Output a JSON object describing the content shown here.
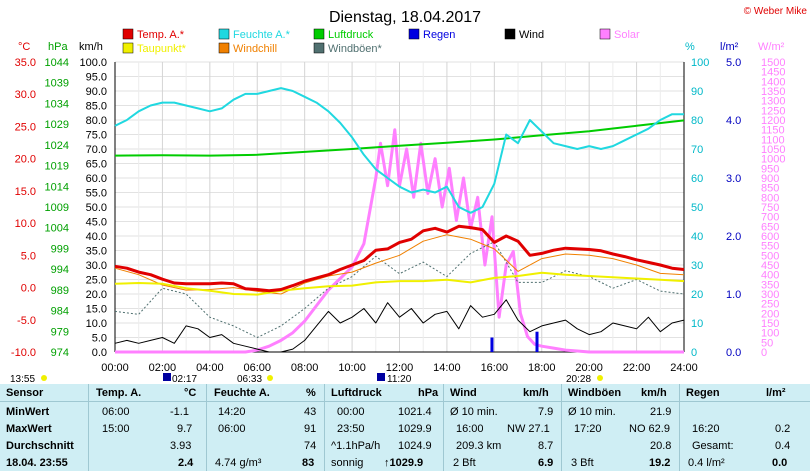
{
  "title": "Dienstag, 18.04.2017",
  "copyright": "© Weber Mike",
  "legend": [
    {
      "label": "Temp. A.*",
      "color": "#e00000"
    },
    {
      "label": "Feuchte A.*",
      "color": "#20d8e0"
    },
    {
      "label": "Luftdruck",
      "color": "#00cc00"
    },
    {
      "label": "Regen",
      "color": "#0000e0"
    },
    {
      "label": "Wind",
      "color": "#000000"
    },
    {
      "label": "Solar",
      "color": "#ff80ff"
    },
    {
      "label": "Taupunkt*",
      "color": "#f0f000"
    },
    {
      "label": "Windchill",
      "color": "#f08000"
    },
    {
      "label": "Windböen*",
      "color": "#507070"
    }
  ],
  "axis_units": {
    "temp": "°C",
    "press": "hPa",
    "wind": "km/h",
    "hum": "%",
    "rain": "l/m²",
    "solar": "W/m²"
  },
  "axis_colors": {
    "temp": "#e00000",
    "press": "#00a000",
    "wind": "#000000",
    "hum": "#00b8c8",
    "rain": "#0000c0",
    "solar": "#ff80ff"
  },
  "marker_times": {
    "min_temp": "13:55",
    "sunrise": "02:17",
    "dawn": "06:33",
    "sunset": "11:20",
    "dusk": "20:28"
  },
  "chart_data": {
    "type": "line",
    "x_ticks": [
      "00:00",
      "02:00",
      "04:00",
      "06:00",
      "08:00",
      "10:00",
      "12:00",
      "14:00",
      "16:00",
      "18:00",
      "20:00",
      "22:00",
      "24:00"
    ],
    "axes": {
      "temp": {
        "min": -10,
        "max": 35,
        "step": 5,
        "ticks": [
          "35.0",
          "30.0",
          "25.0",
          "20.0",
          "15.0",
          "10.0",
          "5.0",
          "0.0",
          "-5.0",
          "-10.0"
        ]
      },
      "press": {
        "min": 974,
        "max": 1044,
        "ticks": [
          "1044",
          "1039",
          "1034",
          "1029",
          "1024",
          "1019",
          "1014",
          "1009",
          "1004",
          "999",
          "994",
          "989",
          "984",
          "979",
          "974"
        ]
      },
      "wind": {
        "min": 0,
        "max": 100,
        "step": 5
      },
      "hum": {
        "min": 0,
        "max": 100,
        "step": 10,
        "ticks": [
          "100",
          "90",
          "80",
          "70",
          "60",
          "50",
          "40",
          "30",
          "20",
          "10",
          "0"
        ]
      },
      "rain": {
        "min": 0,
        "max": 5,
        "ticks": [
          "5.0",
          "4.0",
          "3.0",
          "2.0",
          "1.0",
          "0.0"
        ]
      },
      "solar": {
        "min": 0,
        "max": 1500,
        "step": 50
      }
    },
    "series": [
      {
        "name": "Temp. A.*",
        "axis": "temp",
        "color": "#e00000",
        "width": 3,
        "x": [
          0,
          0.5,
          1,
          1.5,
          2,
          2.5,
          3,
          3.5,
          4,
          4.5,
          5,
          5.5,
          6,
          6.5,
          7,
          7.5,
          8,
          8.5,
          9,
          9.5,
          10,
          10.5,
          11,
          11.5,
          12,
          12.5,
          13,
          13.5,
          14,
          14.5,
          15,
          15.5,
          16,
          16.5,
          17,
          17.5,
          18,
          18.5,
          19,
          19.5,
          20,
          20.5,
          21,
          21.5,
          22,
          22.5,
          23,
          23.5,
          24
        ],
        "y": [
          3.3,
          3.0,
          2.4,
          2.0,
          1.3,
          0.7,
          0.6,
          0.6,
          0.6,
          0.7,
          0.6,
          -0.2,
          -0.3,
          -0.5,
          -0.3,
          0.3,
          1.0,
          1.5,
          2.0,
          2.8,
          3.5,
          4.2,
          5.8,
          6.0,
          7.0,
          7.5,
          8.8,
          9.2,
          8.6,
          9.5,
          9.3,
          9.0,
          7.0,
          8.0,
          7.2,
          5.0,
          5.3,
          5.8,
          6.1,
          6.0,
          5.9,
          5.7,
          5.2,
          4.8,
          4.3,
          3.9,
          3.5,
          3.0,
          2.8
        ]
      },
      {
        "name": "Taupunkt*",
        "axis": "temp",
        "color": "#f0f000",
        "width": 2,
        "x": [
          0,
          1,
          2,
          3,
          4,
          5,
          6,
          7,
          8,
          9,
          10,
          11,
          12,
          13,
          14,
          15,
          16,
          17,
          18,
          19,
          20,
          21,
          22,
          23,
          24
        ],
        "y": [
          0.6,
          0.7,
          0.6,
          -0.1,
          -0.5,
          -1.0,
          -1.1,
          -0.5,
          -0.1,
          0.2,
          0.3,
          0.8,
          1.0,
          1.0,
          1.2,
          0.8,
          1.5,
          1.8,
          2.3,
          2.0,
          1.8,
          1.6,
          1.4,
          1.2,
          1.0
        ]
      },
      {
        "name": "Feuchte A.*",
        "axis": "hum",
        "color": "#20d8e0",
        "width": 2,
        "x": [
          0,
          0.5,
          1,
          1.5,
          2,
          2.5,
          3,
          3.5,
          4,
          4.5,
          5,
          5.5,
          6,
          6.5,
          7,
          7.5,
          8,
          8.5,
          9,
          9.5,
          10,
          10.5,
          11,
          11.5,
          12,
          12.5,
          13,
          13.5,
          14,
          14.5,
          15,
          15.5,
          16,
          16.5,
          17,
          17.5,
          18,
          18.5,
          19,
          19.5,
          20,
          20.5,
          21,
          21.5,
          22,
          22.5,
          23,
          23.5,
          24
        ],
        "y": [
          78,
          80,
          83,
          85,
          86,
          86,
          85,
          84,
          83,
          84,
          87,
          89,
          89,
          90,
          91,
          90,
          88,
          86,
          83,
          79,
          74,
          68,
          63,
          60,
          57,
          55,
          56,
          55,
          57,
          50,
          48,
          50,
          58,
          75,
          72,
          80,
          76,
          72,
          71,
          70,
          71,
          70,
          71,
          73,
          75,
          77,
          80,
          82,
          82
        ]
      },
      {
        "name": "Luftdruck",
        "axis": "press",
        "color": "#00cc00",
        "width": 2,
        "x": [
          0,
          2,
          4,
          6,
          8,
          10,
          12,
          14,
          16,
          18,
          20,
          22,
          24
        ],
        "y": [
          1021.4,
          1021.5,
          1021.4,
          1021.6,
          1022.3,
          1023.0,
          1023.8,
          1024.5,
          1025.3,
          1026.3,
          1027.3,
          1028.6,
          1029.9
        ]
      },
      {
        "name": "Wind",
        "axis": "wind",
        "color": "#000000",
        "width": 1,
        "x": [
          0,
          0.5,
          1,
          1.5,
          2,
          2.5,
          3,
          3.5,
          4,
          4.5,
          5,
          5.5,
          6,
          6.5,
          7,
          7.5,
          8,
          8.5,
          9,
          9.5,
          10,
          10.5,
          11,
          11.5,
          12,
          12.5,
          13,
          13.5,
          14,
          14.5,
          15,
          15.5,
          16,
          16.5,
          17,
          17.5,
          18,
          18.5,
          19,
          19.5,
          20,
          20.5,
          21,
          21.5,
          22,
          22.5,
          23,
          23.5,
          24
        ],
        "y": [
          3,
          4,
          3,
          4,
          5,
          3,
          9,
          8,
          5,
          6,
          3,
          2,
          1,
          0,
          0,
          1,
          4,
          9,
          14,
          10,
          12,
          15,
          10,
          17,
          12,
          15,
          10,
          13,
          14,
          8,
          16,
          12,
          13,
          18,
          11,
          7,
          9,
          10,
          11,
          8,
          6,
          7,
          10,
          9,
          8,
          12,
          7,
          10,
          11
        ]
      },
      {
        "name": "Windchill",
        "axis": "temp",
        "color": "#f08000",
        "width": 1,
        "x": [
          0,
          1,
          2,
          3,
          4,
          5,
          6,
          7,
          8,
          9,
          10,
          11,
          12,
          13,
          14,
          15,
          16,
          17,
          18,
          19,
          20,
          21,
          22,
          23,
          24
        ],
        "y": [
          3.0,
          2.0,
          0.4,
          -0.4,
          -0.3,
          0.0,
          -0.6,
          -1.0,
          0.7,
          1.8,
          2.4,
          3.8,
          5.0,
          7.2,
          8.2,
          7.5,
          6.0,
          2.5,
          4.5,
          5.2,
          5.0,
          4.5,
          3.5,
          2.2,
          2.0
        ]
      },
      {
        "name": "Windböen*",
        "axis": "wind",
        "color": "#507070",
        "width": 1,
        "dash": "2,2",
        "x": [
          0,
          1,
          2,
          3,
          4,
          5,
          6,
          7,
          8,
          9,
          10,
          11,
          12,
          13,
          14,
          15,
          16,
          17,
          18,
          19,
          20,
          21,
          22,
          23,
          24
        ],
        "y": [
          14,
          13,
          22,
          20,
          12,
          9,
          5,
          9,
          15,
          22,
          26,
          33,
          27,
          31,
          26,
          34,
          38,
          24,
          24,
          28,
          26,
          22,
          25,
          21,
          20
        ]
      },
      {
        "name": "Solar",
        "axis": "solar",
        "color": "#ff80ff",
        "width": 3,
        "x": [
          0,
          5.5,
          6,
          6.5,
          7,
          7.5,
          8,
          8.5,
          9,
          9.5,
          10,
          10.5,
          11,
          11.2,
          11.5,
          11.8,
          12,
          12.3,
          12.6,
          12.9,
          13.2,
          13.5,
          13.8,
          14.1,
          14.4,
          14.7,
          15,
          15.3,
          15.6,
          15.9,
          16.2,
          16.5,
          16.8,
          17.1,
          17.4,
          17.7,
          18,
          18.5,
          19,
          19.5,
          20,
          24
        ],
        "y": [
          0,
          0,
          10,
          30,
          60,
          100,
          160,
          240,
          320,
          380,
          440,
          560,
          900,
          1080,
          860,
          1150,
          860,
          1050,
          800,
          1080,
          820,
          1000,
          750,
          950,
          680,
          900,
          640,
          800,
          450,
          700,
          180,
          450,
          520,
          200,
          80,
          40,
          30,
          20,
          10,
          5,
          0,
          0
        ]
      },
      {
        "name": "Regen",
        "axis": "rain",
        "color": "#0000e0",
        "width": 2,
        "x": [
          15.9,
          17.8
        ],
        "y": [
          0.25,
          0.35
        ]
      }
    ]
  },
  "table": {
    "headers": [
      "Sensor",
      "Temp. A.",
      "°C",
      "Feuchte A.",
      "%",
      "Luftdruck",
      "hPa",
      "Wind",
      "km/h",
      "Windböen",
      "km/h",
      "Regen",
      "l/m²"
    ],
    "rows": [
      {
        "label": "MinWert",
        "t_time": "06:00",
        "t_val": "-1.1",
        "h_time": "14:20",
        "h_val": "43",
        "p_time": "00:00",
        "p_val": "1021.4",
        "w_text": "Ø 10 min.",
        "w_val": "7.9",
        "g_text": "Ø 10 min.",
        "g_val": "21.9",
        "r_text": "",
        "r_val": ""
      },
      {
        "label": "MaxWert",
        "t_time": "15:00",
        "t_val": "9.7",
        "h_time": "06:00",
        "h_val": "91",
        "p_time": "23:50",
        "p_val": "1029.9",
        "w_text": "16:00",
        "w_dir": "NW 27.1",
        "g_text": "17:20",
        "g_dir": "NO 62.9",
        "r_text": "16:20",
        "r_val": "0.2"
      },
      {
        "label": "Durchschnitt",
        "t_time": "",
        "t_val": "3.93",
        "h_time": "",
        "h_val": "74",
        "p_time": "^1.1hPa/h",
        "p_val": "1024.9",
        "w_text": "209.3 km",
        "w_val": "8.7",
        "g_text": "",
        "g_val": "20.8",
        "r_text": "Gesamt:",
        "r_val": "0.4"
      },
      {
        "label": "18.04. 23:55",
        "t_time": "",
        "t_val": "2.4",
        "h_time": "4.74 g/m³",
        "h_val": "83",
        "p_time": "sonnig",
        "p_val": "↑1029.9",
        "w_text": "2 Bft",
        "w_val": "6.9",
        "g_text": "3 Bft",
        "g_val": "19.2",
        "r_text": "0.4 l/m²",
        "r_val": "0.0"
      }
    ]
  }
}
